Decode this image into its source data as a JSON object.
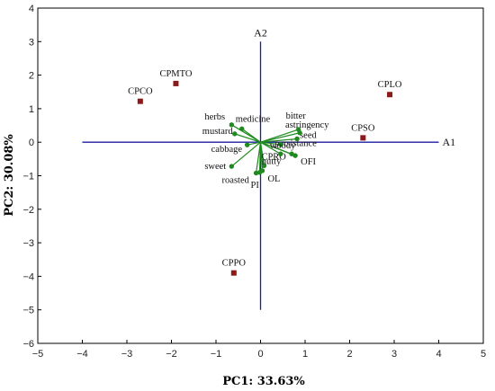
{
  "chart_data": {
    "type": "scatter",
    "xlabel": "PC1: 33.63%",
    "ylabel": "PC2: 30.08%",
    "xlim": [
      -5,
      5
    ],
    "ylim": [
      -6,
      4
    ],
    "xticks": [
      "−5",
      "−4",
      "−3",
      "−2",
      "−1",
      "0",
      "1",
      "2",
      "3",
      "4",
      "5"
    ],
    "yticks": [
      "−6",
      "−5",
      "−4",
      "−3",
      "−2",
      "−1",
      "0",
      "1",
      "2",
      "3",
      "4"
    ],
    "grid": false,
    "reference_axes": [
      {
        "name": "A1",
        "from": [
          -4,
          0
        ],
        "to": [
          4,
          0
        ]
      },
      {
        "name": "A2",
        "from": [
          0,
          3
        ],
        "to": [
          0,
          -5
        ]
      }
    ],
    "samples": [
      {
        "label": "CPMTO",
        "x": -1.9,
        "y": 1.75
      },
      {
        "label": "CPCO",
        "x": -2.7,
        "y": 1.22
      },
      {
        "label": "CPLO",
        "x": 2.9,
        "y": 1.42
      },
      {
        "label": "CPSO",
        "x": 2.3,
        "y": 0.13
      },
      {
        "label": "CPPO",
        "x": -0.6,
        "y": -3.9
      }
    ],
    "attributes": [
      {
        "label": "herbs",
        "x": -0.65,
        "y": 0.52
      },
      {
        "label": "medicine",
        "x": -0.42,
        "y": 0.4
      },
      {
        "label": "mustard",
        "x": -0.58,
        "y": 0.25
      },
      {
        "label": "cabbage",
        "x": -0.3,
        "y": -0.08
      },
      {
        "label": "sweet",
        "x": -0.65,
        "y": -0.72
      },
      {
        "label": "roasted",
        "x": -0.1,
        "y": -0.92
      },
      {
        "label": "PI",
        "x": -0.02,
        "y": -0.9
      },
      {
        "label": "OL",
        "x": 0.04,
        "y": -0.85
      },
      {
        "label": "CPRO",
        "x": 0.08,
        "y": -0.7
      },
      {
        "label": "nutty",
        "x": 0.45,
        "y": -0.35
      },
      {
        "label": "OFI",
        "x": 0.78,
        "y": -0.4
      },
      {
        "label": "persistance",
        "x": 0.7,
        "y": -0.35
      },
      {
        "label": "woody",
        "x": 0.45,
        "y": -0.07
      },
      {
        "label": "seed",
        "x": 0.82,
        "y": 0.1
      },
      {
        "label": "astringency",
        "x": 0.88,
        "y": 0.28
      },
      {
        "label": "bitter",
        "x": 0.85,
        "y": 0.38
      }
    ],
    "colors": {
      "sample": "#8b1a1a",
      "attribute": "#1f8a1f",
      "reference_axis": "#1c1ca0"
    }
  }
}
